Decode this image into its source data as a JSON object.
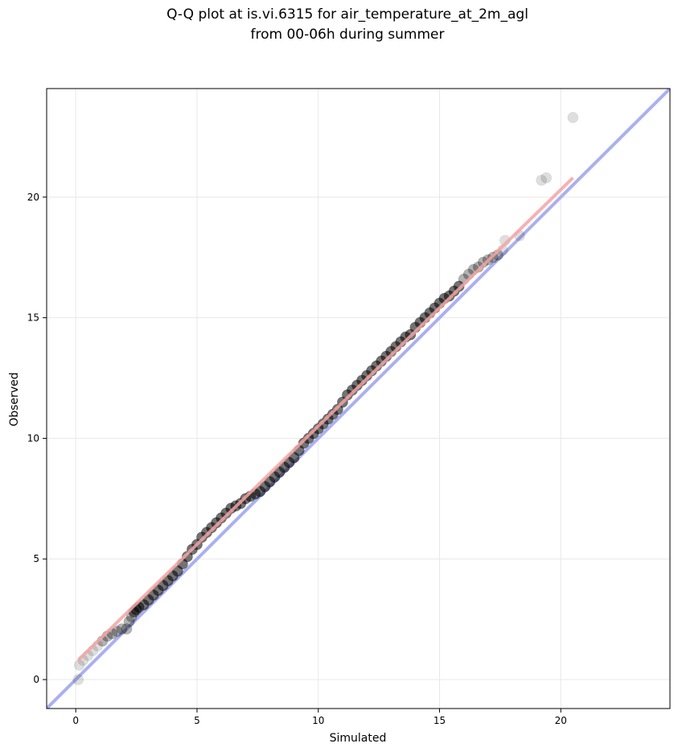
{
  "chart_data": {
    "type": "scatter",
    "title_lines": [
      "Q-Q plot at is.vi.6315 for air_temperature_at_2m_agl",
      "from 00-06h during summer"
    ],
    "xlabel": "Simulated",
    "ylabel": "Observed",
    "xlim": [
      -1.2,
      24.5
    ],
    "ylim": [
      -1.2,
      24.5
    ],
    "xticks": [
      0,
      5,
      10,
      15,
      20
    ],
    "yticks": [
      0,
      5,
      10,
      15,
      20
    ],
    "grid": true,
    "colors": {
      "points": "#000000",
      "identity_line": "#aab0f0",
      "fit_line": "#f4a3a3",
      "grid": "#e8e8e8"
    },
    "identity_line": {
      "x": [
        -1.2,
        24.5
      ],
      "y": [
        -1.2,
        24.5
      ]
    },
    "fit_line": {
      "x": [
        0.1,
        20.5
      ],
      "y": [
        0.8,
        20.8
      ]
    },
    "points": {
      "x": [
        0.1,
        0.15,
        0.3,
        0.5,
        0.7,
        0.9,
        1.1,
        1.3,
        1.5,
        1.7,
        1.9,
        2.1,
        2.2,
        2.3,
        2.4,
        2.5,
        2.6,
        2.8,
        3.0,
        3.2,
        3.4,
        3.6,
        3.8,
        4.0,
        4.2,
        4.4,
        4.6,
        4.8,
        5.0,
        5.2,
        5.4,
        5.6,
        5.8,
        6.0,
        6.2,
        6.4,
        6.6,
        6.8,
        7.0,
        7.2,
        7.4,
        7.6,
        7.8,
        8.0,
        8.2,
        8.4,
        8.6,
        8.8,
        9.0,
        9.2,
        9.4,
        9.6,
        9.8,
        10.0,
        10.2,
        10.4,
        10.6,
        10.8,
        11.0,
        11.2,
        11.4,
        11.6,
        11.8,
        12.0,
        12.2,
        12.4,
        12.6,
        12.8,
        13.0,
        13.2,
        13.4,
        13.6,
        13.8,
        14.0,
        14.2,
        14.4,
        14.6,
        14.8,
        15.0,
        15.2,
        15.4,
        15.6,
        15.8,
        16.0,
        16.2,
        16.4,
        16.6,
        16.8,
        17.0,
        17.2,
        17.4,
        17.6,
        17.7,
        18.3,
        19.2,
        19.4,
        20.5
      ],
      "y": [
        0.0,
        0.6,
        0.8,
        1.0,
        1.2,
        1.4,
        1.6,
        1.8,
        1.9,
        2.0,
        2.1,
        2.1,
        2.4,
        2.6,
        2.8,
        2.9,
        3.0,
        3.1,
        3.3,
        3.5,
        3.7,
        3.9,
        4.1,
        4.3,
        4.5,
        4.8,
        5.1,
        5.4,
        5.6,
        5.9,
        6.1,
        6.3,
        6.5,
        6.7,
        6.9,
        7.1,
        7.2,
        7.3,
        7.5,
        7.6,
        7.7,
        7.8,
        8.0,
        8.2,
        8.4,
        8.6,
        8.8,
        9.0,
        9.2,
        9.5,
        9.8,
        10.0,
        10.2,
        10.4,
        10.6,
        10.8,
        11.0,
        11.2,
        11.5,
        11.8,
        12.0,
        12.2,
        12.4,
        12.6,
        12.8,
        13.0,
        13.2,
        13.4,
        13.6,
        13.8,
        14.0,
        14.2,
        14.3,
        14.6,
        14.8,
        15.0,
        15.2,
        15.4,
        15.6,
        15.8,
        15.9,
        16.1,
        16.3,
        16.6,
        16.8,
        17.0,
        17.1,
        17.3,
        17.4,
        17.5,
        17.6,
        17.8,
        18.2,
        18.4,
        20.7,
        20.8,
        23.3
      ]
    }
  }
}
